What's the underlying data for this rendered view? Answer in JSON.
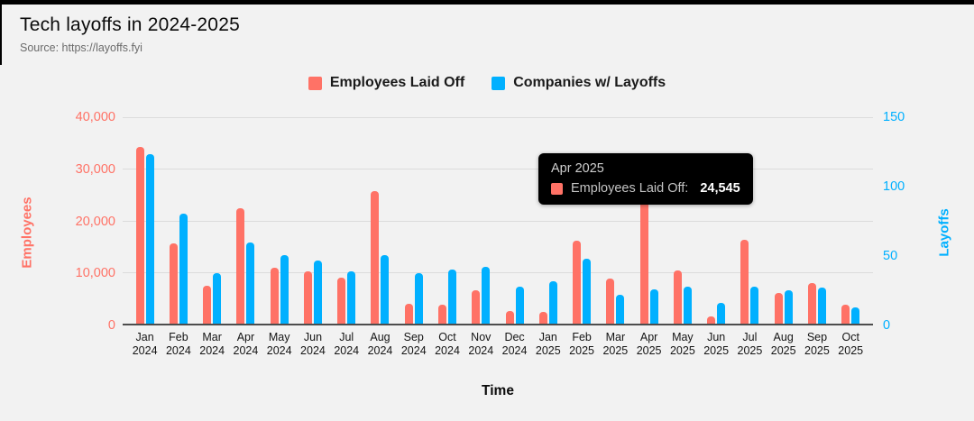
{
  "page": {
    "title": "Tech layoffs in 2024-2025",
    "source": "Source: https://layoffs.fyi"
  },
  "colors": {
    "employees": "#ff7266",
    "companies": "#00b0ff",
    "gridline": "#dcdcdc",
    "axis_line": "#4d4d4d",
    "background": "#f2f2f2",
    "tooltip_bg": "#000000"
  },
  "legend": {
    "items": [
      {
        "label": "Employees Laid Off",
        "color": "#ff7266"
      },
      {
        "label": "Companies w/ Layoffs",
        "color": "#00b0ff"
      }
    ]
  },
  "axes": {
    "left": {
      "title": "Employees",
      "color": "#ff7266",
      "max": 40000,
      "ticks": [
        "40,000",
        "30,000",
        "20,000",
        "10,000",
        "0"
      ]
    },
    "right": {
      "title": "Layoffs",
      "color": "#00b0ff",
      "max": 150,
      "ticks": [
        "150",
        "100",
        "50",
        "0"
      ]
    },
    "x_title": "Time"
  },
  "tooltip": {
    "title": "Apr 2025",
    "series_label": "Employees Laid Off:",
    "value": "24,545",
    "swatch_color": "#ff7266"
  },
  "chart_data": {
    "type": "bar",
    "title": "Tech layoffs in 2024-2025",
    "xlabel": "Time",
    "grid": true,
    "legend_position": "top",
    "categories": [
      "Jan 2024",
      "Feb 2024",
      "Mar 2024",
      "Apr 2024",
      "May 2024",
      "Jun 2024",
      "Jul 2024",
      "Aug 2024",
      "Sep 2024",
      "Oct 2024",
      "Nov 2024",
      "Dec 2024",
      "Jan 2025",
      "Feb 2025",
      "Mar 2025",
      "Apr 2025",
      "May 2025",
      "Jun 2025",
      "Jul 2025",
      "Aug 2025",
      "Sep 2025",
      "Oct 2025"
    ],
    "series": [
      {
        "name": "Employees Laid Off",
        "axis": "left",
        "axis_label": "Employees",
        "ylim": [
          0,
          40000
        ],
        "color": "#ff7266",
        "values": [
          34200,
          15500,
          7300,
          22300,
          10800,
          10100,
          8900,
          25700,
          3900,
          3700,
          6400,
          2500,
          2200,
          16000,
          8700,
          24545,
          10300,
          1400,
          16200,
          5900,
          7800,
          3600
        ]
      },
      {
        "name": "Companies w/ Layoffs",
        "axis": "right",
        "axis_label": "Layoffs",
        "ylim": [
          0,
          150
        ],
        "color": "#00b0ff",
        "values": [
          123,
          80,
          37,
          59,
          50,
          46,
          38,
          50,
          37,
          39,
          41,
          27,
          31,
          47,
          21,
          25,
          27,
          15,
          27,
          24,
          26,
          12
        ]
      }
    ],
    "annotation": {
      "tooltip_month": "Apr 2025",
      "tooltip_series": "Employees Laid Off",
      "tooltip_value": 24545
    }
  }
}
